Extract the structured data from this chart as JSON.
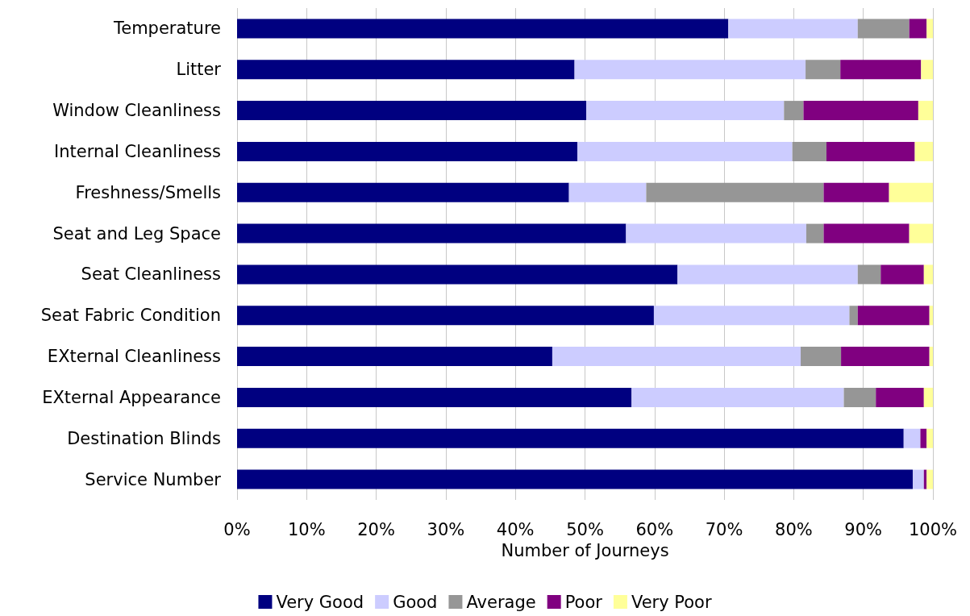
{
  "chart_data": {
    "type": "bar",
    "orientation": "horizontal",
    "stacked": true,
    "xlabel": "Number of Journeys",
    "categories": [
      "Temperature",
      "Litter",
      "Window Cleanliness",
      "Internal Cleanliness",
      "Freshness/Smells",
      "Seat and Leg Space",
      "Seat Cleanliness",
      "Seat Fabric Condition",
      "EXternal Cleanliness",
      "EXternal Appearance",
      "Destination Blinds",
      "Service Number"
    ],
    "series": [
      {
        "name": "Very Good",
        "color": "#000080",
        "values": [
          70.6,
          48.5,
          50.2,
          48.9,
          47.7,
          55.9,
          63.3,
          59.9,
          45.3,
          56.7,
          95.8,
          97.1
        ]
      },
      {
        "name": "Good",
        "color": "#ccccff",
        "values": [
          18.6,
          33.2,
          28.4,
          30.9,
          11.1,
          25.9,
          25.9,
          28.1,
          35.7,
          30.5,
          2.4,
          1.6
        ]
      },
      {
        "name": "Average",
        "color": "#969696",
        "values": [
          7.4,
          5.0,
          2.8,
          4.9,
          25.5,
          2.5,
          3.3,
          1.2,
          5.8,
          4.6,
          0,
          0
        ]
      },
      {
        "name": "Poor",
        "color": "#800080",
        "values": [
          2.5,
          11.6,
          16.5,
          12.7,
          9.4,
          12.3,
          6.2,
          10.3,
          12.7,
          6.9,
          0.9,
          0.4
        ]
      },
      {
        "name": "Very Poor",
        "color": "#ffff99",
        "values": [
          0.9,
          1.7,
          2.1,
          2.6,
          6.3,
          3.4,
          1.3,
          0.5,
          0.5,
          1.3,
          0.9,
          0.9
        ]
      }
    ],
    "xlim": [
      0,
      100
    ],
    "xticks": [
      {
        "value": 0,
        "label": "0%"
      },
      {
        "value": 10,
        "label": "10%"
      },
      {
        "value": 20,
        "label": "20%"
      },
      {
        "value": 30,
        "label": "30%"
      },
      {
        "value": 40,
        "label": "40%"
      },
      {
        "value": 50,
        "label": "50%"
      },
      {
        "value": 60,
        "label": "60%"
      },
      {
        "value": 70,
        "label": "70%"
      },
      {
        "value": 80,
        "label": "80%"
      },
      {
        "value": 90,
        "label": "90%"
      },
      {
        "value": 100,
        "label": "100%"
      }
    ],
    "grid": "x",
    "legend": "bottom"
  }
}
